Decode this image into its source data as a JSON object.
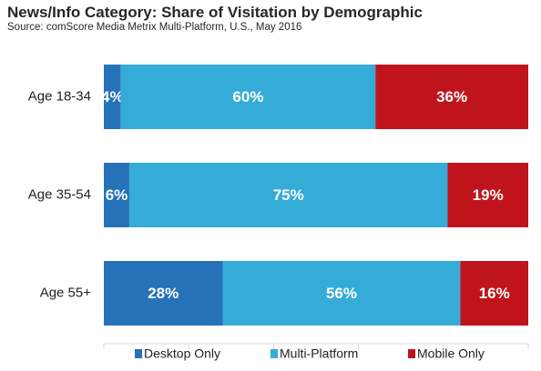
{
  "chart_data": {
    "type": "bar",
    "orientation": "horizontal",
    "stacked": true,
    "title": "News/Info Category: Share of Visitation by Demographic",
    "subtitle": "Source: comScore Media Metrix Multi-Platform, U.S., May 2016",
    "categories": [
      "Age 18-34",
      "Age 35-54",
      "Age 55+"
    ],
    "series": [
      {
        "name": "Desktop Only",
        "color": "#2672b9",
        "values": [
          4,
          6,
          28
        ],
        "labels": [
          "4%",
          "6%",
          "28%"
        ]
      },
      {
        "name": "Multi-Platform",
        "color": "#35acd8",
        "values": [
          60,
          75,
          56
        ],
        "labels": [
          "60%",
          "75%",
          "56%"
        ]
      },
      {
        "name": "Mobile Only",
        "color": "#c0141c",
        "values": [
          36,
          19,
          16
        ],
        "labels": [
          "36%",
          "19%",
          "16%"
        ]
      }
    ],
    "xlim": [
      0,
      100
    ],
    "legend": "bottom",
    "grid": false
  }
}
